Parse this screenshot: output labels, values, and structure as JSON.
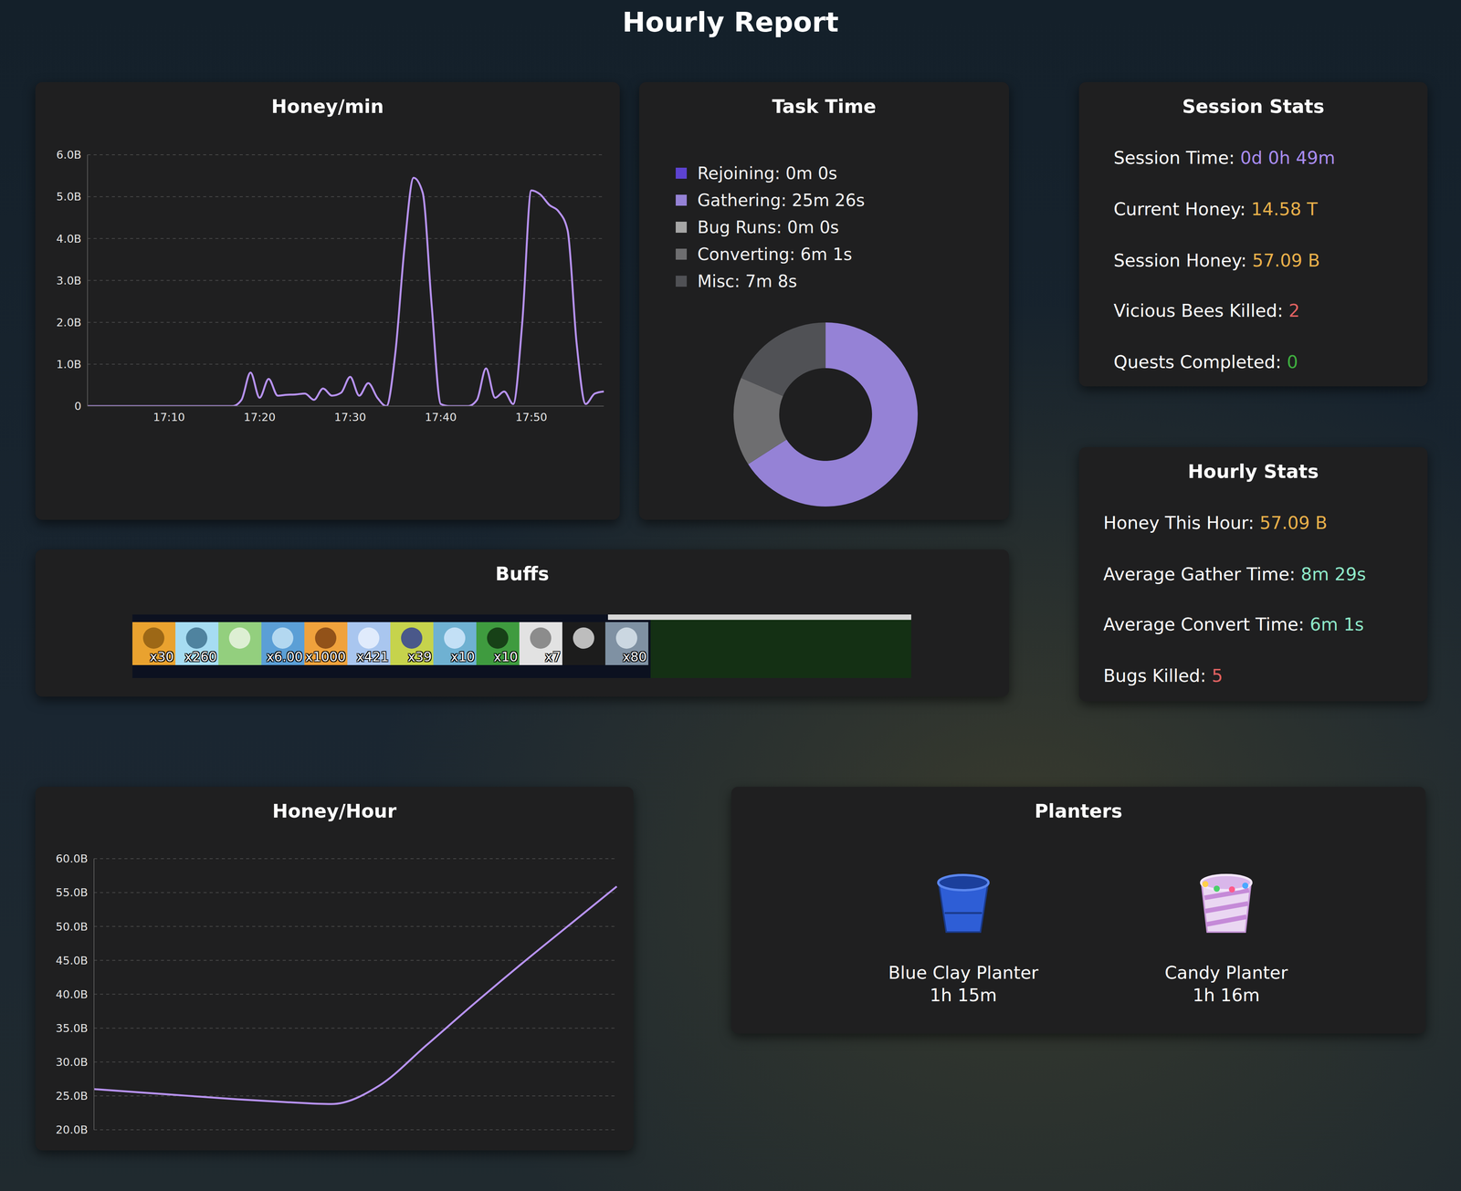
{
  "title": "Hourly Report",
  "chart_data": [
    {
      "type": "line",
      "title": "Honey/min",
      "categories": [
        null,
        null,
        null,
        null,
        null,
        null,
        null,
        null,
        null,
        "17:10",
        null,
        null,
        null,
        null,
        null,
        null,
        null,
        null,
        null,
        "17:20",
        null,
        null,
        null,
        null,
        null,
        null,
        null,
        null,
        null,
        "17:30",
        null,
        null,
        null,
        null,
        null,
        null,
        null,
        null,
        null,
        "17:40",
        null,
        null,
        null,
        null,
        null,
        null,
        null,
        null,
        null,
        "17:50",
        null,
        null,
        null,
        null,
        null,
        null,
        null,
        null
      ],
      "values": [
        0,
        0,
        0,
        0,
        0,
        0,
        0,
        0,
        0,
        0,
        0,
        0,
        0,
        0,
        0,
        0,
        0,
        0.15,
        0.8,
        0.2,
        0.65,
        0.25,
        0.27,
        0.28,
        0.3,
        0.15,
        0.42,
        0.25,
        0.32,
        0.7,
        0.25,
        0.55,
        0.2,
        0,
        1.3,
        3.8,
        5.45,
        5.1,
        2.4,
        0.05,
        0,
        0,
        0,
        0.15,
        0.9,
        0.2,
        0.35,
        0.05,
        2.0,
        5.15,
        5.05,
        4.8,
        4.65,
        4.2,
        1.5,
        0.05,
        0.3,
        0.35
      ],
      "color": "#b792f2",
      "ylim": [
        0,
        6
      ],
      "yticks": [
        0,
        {
          "value": 1,
          "label": "1.0B"
        },
        {
          "value": 2,
          "label": "2.0B"
        },
        {
          "value": 3,
          "label": "3.0B"
        },
        {
          "value": 4,
          "label": "4.0B"
        },
        {
          "value": 5,
          "label": "5.0B"
        },
        {
          "value": 6,
          "label": "6.0B"
        }
      ],
      "grid": true
    },
    {
      "type": "pie",
      "title": "Task Time",
      "categories": [
        "Rejoining: 0m 0s",
        "Gathering: 25m 26s",
        "Bug Runs: 0m 0s",
        "Converting: 6m 1s",
        "Misc: 7m 8s"
      ],
      "values": [
        0,
        1526,
        0,
        361,
        428
      ],
      "colors": [
        "#5d43d1",
        "#9582d6",
        "#a6a6a6",
        "#6e6e70",
        "#505155"
      ]
    },
    {
      "type": "line",
      "title": "Honey/Hour",
      "categories": [
        null,
        null,
        null,
        null,
        null,
        null,
        null,
        null,
        null,
        null,
        null,
        null
      ],
      "values": [
        26.0,
        25.5,
        25.0,
        24.5,
        24.1,
        23.8,
        26.5,
        32.5,
        38.6,
        44.5,
        50.2,
        55.9
      ],
      "color": "#b792f2",
      "ylim": [
        20,
        60
      ],
      "yticks": [
        {
          "value": 20,
          "label": "20.0B"
        },
        {
          "value": 25,
          "label": "25.0B"
        },
        {
          "value": 30,
          "label": "30.0B"
        },
        {
          "value": 35,
          "label": "35.0B"
        },
        {
          "value": 40,
          "label": "40.0B"
        },
        {
          "value": 45,
          "label": "45.0B"
        },
        {
          "value": 50,
          "label": "50.0B"
        },
        {
          "value": 55,
          "label": "55.0B"
        },
        {
          "value": 60,
          "label": "60.0B"
        }
      ],
      "grid": true,
      "tick_labels": "y"
    }
  ],
  "buffs": {
    "title": "Buffs",
    "labels": [
      "x30",
      "x260",
      null,
      "x6.00",
      "x1000",
      "x421",
      "x39",
      "x10",
      "x10",
      "x7",
      null,
      "x80"
    ]
  },
  "session_stats": {
    "title": "Session Stats",
    "rows": [
      {
        "label": "Session Time:",
        "value": "0d 0h 49m"
      },
      {
        "label": "Current Honey:",
        "value": "14.58 T"
      },
      {
        "label": "Session Honey:",
        "value": "57.09 B"
      },
      {
        "label": "Vicious Bees Killed:",
        "value": 2
      },
      {
        "label": "Quests Completed:",
        "value": 0
      }
    ]
  },
  "hourly_stats": {
    "title": "Hourly Stats",
    "rows": [
      {
        "label": "Honey This Hour:",
        "value": "57.09 B"
      },
      {
        "label": "Average Gather Time:",
        "value": "8m 29s"
      },
      {
        "label": "Average Convert Time:",
        "value": "6m 1s"
      },
      {
        "label": "Bugs Killed:",
        "value": 5
      }
    ]
  },
  "planters": {
    "title": "Planters",
    "items": [
      {
        "name": "Blue Clay Planter",
        "time": "1h 15m"
      },
      {
        "name": "Candy Planter",
        "time": "1h 16m"
      }
    ]
  }
}
